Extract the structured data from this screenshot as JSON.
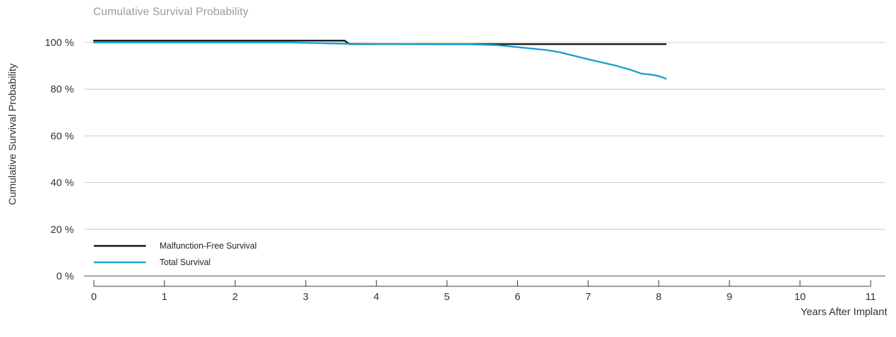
{
  "chart_data": {
    "type": "line",
    "title": "Cumulative Survival Probability",
    "xlabel": "Years After Implant",
    "ylabel": "Cumulative Survival Probability",
    "xlim": [
      0,
      11
    ],
    "ylim": [
      0,
      100
    ],
    "x_ticks": [
      "0",
      "1",
      "2",
      "3",
      "4",
      "5",
      "6",
      "7",
      "8",
      "9",
      "10",
      "11"
    ],
    "y_ticks": [
      "0 %",
      "20 %",
      "40 %",
      "60 %",
      "80 %",
      "100 %"
    ],
    "grid": "horizontal",
    "legend_position": "bottom-left",
    "series": [
      {
        "name": "Malfunction-Free Survival",
        "color": "#111111",
        "x": [
          0,
          3.55,
          3.62,
          8.1
        ],
        "y": [
          100.8,
          100.8,
          99.3,
          99.3
        ]
      },
      {
        "name": "Total Survival",
        "color": "#1a9fd0",
        "x": [
          0,
          2.8,
          3.6,
          4.5,
          5.3,
          5.7,
          5.9,
          6.0,
          6.2,
          6.4,
          6.6,
          6.8,
          7.0,
          7.2,
          7.4,
          7.6,
          7.75,
          7.9,
          8.0,
          8.1
        ],
        "y": [
          100,
          100,
          99.4,
          99.3,
          99.2,
          98.9,
          98.3,
          98.0,
          97.4,
          96.8,
          95.8,
          94.3,
          92.8,
          91.4,
          90.0,
          88.3,
          86.7,
          86.2,
          85.6,
          84.5
        ]
      }
    ]
  }
}
